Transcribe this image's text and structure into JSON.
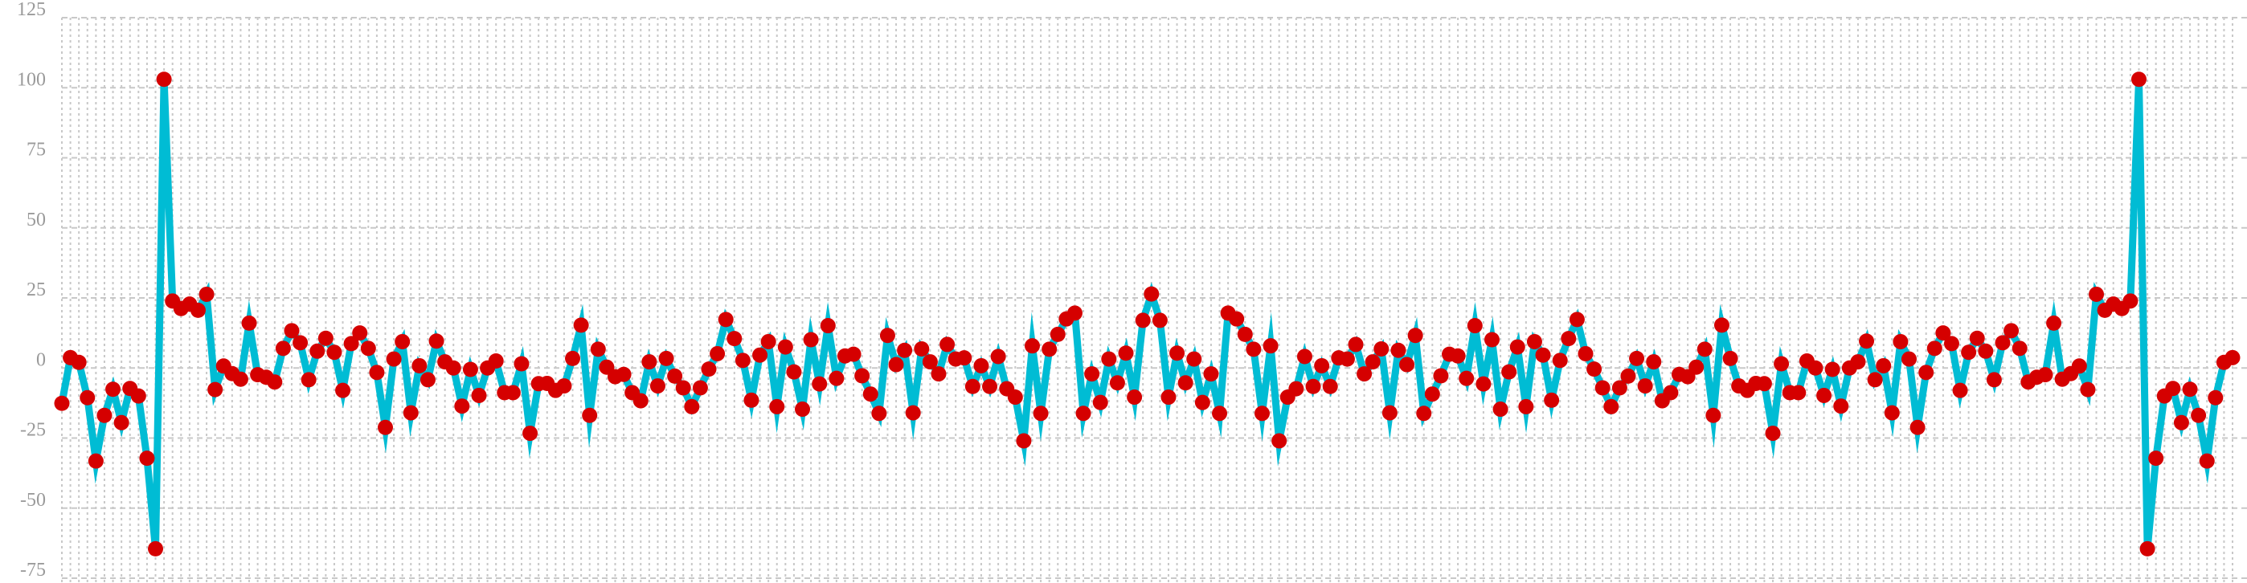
{
  "chart_data": {
    "type": "line",
    "title": "",
    "xlabel": "",
    "ylabel": "",
    "ylim": [
      -75,
      125
    ],
    "yticks": [
      "125",
      "100",
      "75",
      "50",
      "25",
      "0",
      "-25",
      "-50",
      "-75"
    ],
    "ytick_values": [
      125,
      100,
      75,
      50,
      25,
      0,
      -25,
      -50,
      -75
    ],
    "grid": true,
    "legend": "none",
    "colors": {
      "line": "#00BCD4",
      "marker": "#D50000",
      "grid": "#c8c8c8",
      "tick_text": "#9a9a9a"
    },
    "series": [
      {
        "values": [
          -12.6,
          3.7,
          2.0,
          -10.6,
          -33.2,
          -16.9,
          -7.6,
          -19.5,
          -7.3,
          -10.0,
          -32.2,
          -64.5,
          103.0,
          23.9,
          21.2,
          22.8,
          20.6,
          26.3,
          -7.7,
          0.7,
          -2.0,
          -4.0,
          16.0,
          -2.4,
          -3.3,
          -5.0,
          7.0,
          13.3,
          9.0,
          -4.2,
          6.0,
          10.6,
          5.6,
          -8.0,
          8.7,
          12.5,
          7.0,
          -1.6,
          -21.2,
          3.2,
          9.4,
          -16.0,
          0.8,
          -4.2,
          9.6,
          2.2,
          0.0,
          -13.6,
          -0.5,
          -9.8,
          0.0,
          2.5,
          -8.8,
          -8.8,
          1.5,
          -23.3,
          -5.6,
          -5.5,
          -8.0,
          -6.4,
          3.4,
          15.3,
          -16.9,
          6.7,
          0.3,
          -3.1,
          -2.3,
          -8.8,
          -11.7,
          2.2,
          -6.4,
          3.4,
          -2.9,
          -7.1,
          -13.8,
          -7.1,
          -0.4,
          5.1,
          17.3,
          10.5,
          2.7,
          -11.5,
          4.6,
          9.4,
          -13.8,
          7.5,
          -1.4,
          -14.7,
          10.1,
          -5.7,
          15.1,
          -3.7,
          4.3,
          4.9,
          -2.8,
          -9.3,
          -16.2,
          11.6,
          1.2,
          6.3,
          -16.0,
          6.8,
          2.2,
          -2.1,
          8.4,
          3.2,
          3.6,
          -6.6,
          0.8,
          -6.6,
          4.1,
          -7.4,
          -10.4,
          -26.0,
          7.9,
          -16.2,
          6.7,
          12.0,
          17.5,
          19.6,
          -16.2,
          -2.1,
          -12.3,
          3.2,
          -5.3,
          5.3,
          -10.4,
          17.0,
          26.4,
          17.0,
          -10.4,
          5.3,
          -5.3,
          3.2,
          -12.3,
          -2.1,
          -16.2,
          19.6,
          17.5,
          12.0,
          6.7,
          -16.2,
          7.9,
          -26.0,
          -10.4,
          -7.4,
          4.1,
          -6.6,
          0.8,
          -6.6,
          3.6,
          3.2,
          8.4,
          -2.1,
          2.2,
          6.8,
          -16.0,
          6.3,
          1.2,
          11.6,
          -16.2,
          -9.3,
          -2.8,
          4.9,
          4.3,
          -3.7,
          15.1,
          -5.7,
          10.1,
          -14.7,
          -1.4,
          7.5,
          -13.8,
          9.4,
          4.6,
          -11.5,
          2.7,
          10.5,
          17.3,
          5.1,
          -0.4,
          -7.1,
          -13.8,
          -7.1,
          -2.9,
          3.4,
          -6.4,
          2.2,
          -11.7,
          -8.8,
          -2.3,
          -3.1,
          0.3,
          6.7,
          -16.9,
          15.3,
          3.4,
          -6.4,
          -8.0,
          -5.5,
          -5.6,
          -23.3,
          1.5,
          -8.8,
          -8.8,
          2.5,
          0.0,
          -9.8,
          -0.5,
          -13.6,
          0.0,
          2.2,
          9.6,
          -4.2,
          0.8,
          -16.0,
          9.4,
          3.2,
          -21.2,
          -1.6,
          7.0,
          12.5,
          8.7,
          -8.0,
          5.6,
          10.6,
          6.0,
          -4.2,
          9.0,
          13.3,
          7.0,
          -5.0,
          -3.3,
          -2.4,
          16.0,
          -4.0,
          -2.0,
          0.7,
          -7.7,
          26.3,
          20.6,
          22.8,
          21.2,
          23.9,
          103.0,
          -64.5,
          -32.2,
          -10.0,
          -7.3,
          -19.5,
          -7.6,
          -16.9,
          -33.2,
          -10.6,
          2.0,
          3.7
        ]
      }
    ]
  }
}
